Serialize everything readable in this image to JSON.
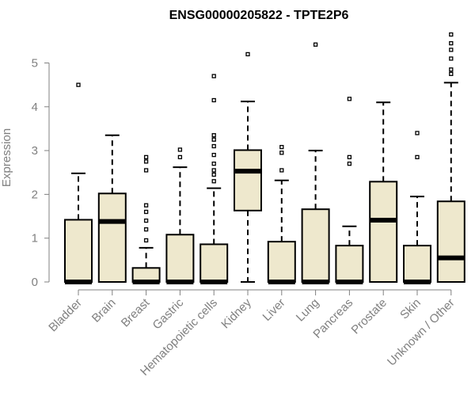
{
  "chart_data": {
    "type": "boxplot",
    "title": "ENSG00000205822 - TPTE2P6",
    "xlabel": "",
    "ylabel": "Expression",
    "ylim": [
      0,
      5.8
    ],
    "yticks": [
      0,
      1,
      2,
      3,
      4,
      5
    ],
    "grid": false,
    "box_fill": "#EEE8CD",
    "categories": [
      "Bladder",
      "Brain",
      "Breast",
      "Gastric",
      "Hematopoietic cells",
      "Kidney",
      "Liver",
      "Lung",
      "Pancreas",
      "Prostate",
      "Skin",
      "Unknown / Other"
    ],
    "boxes": [
      {
        "q1": 0,
        "median": 0,
        "q3": 1.42,
        "whisker_low": 0,
        "whisker_high": 2.48,
        "outliers": [
          4.5
        ]
      },
      {
        "q1": 0,
        "median": 1.38,
        "q3": 2.02,
        "whisker_low": 0,
        "whisker_high": 3.35,
        "outliers": []
      },
      {
        "q1": 0,
        "median": 0,
        "q3": 0.32,
        "whisker_low": 0,
        "whisker_high": 0.78,
        "outliers": [
          0.95,
          1.2,
          1.4,
          1.6,
          1.75,
          2.55,
          2.75,
          2.85
        ]
      },
      {
        "q1": 0,
        "median": 0,
        "q3": 1.08,
        "whisker_low": 0,
        "whisker_high": 2.62,
        "outliers": [
          2.85,
          3.02
        ]
      },
      {
        "q1": 0,
        "median": 0,
        "q3": 0.86,
        "whisker_low": 0,
        "whisker_high": 2.14,
        "outliers": [
          2.3,
          2.45,
          2.55,
          2.7,
          2.9,
          3.1,
          3.25,
          3.35,
          4.15,
          4.7
        ]
      },
      {
        "q1": 1.63,
        "median": 2.53,
        "q3": 3.01,
        "whisker_low": 0,
        "whisker_high": 4.12,
        "outliers": [
          5.2
        ]
      },
      {
        "q1": 0,
        "median": 0,
        "q3": 0.92,
        "whisker_low": 0,
        "whisker_high": 2.32,
        "outliers": [
          2.55,
          2.95,
          3.08
        ]
      },
      {
        "q1": 0,
        "median": 0,
        "q3": 1.66,
        "whisker_low": 0,
        "whisker_high": 3.0,
        "outliers": [
          5.42
        ]
      },
      {
        "q1": 0,
        "median": 0,
        "q3": 0.83,
        "whisker_low": 0,
        "whisker_high": 1.27,
        "outliers": [
          2.7,
          2.85,
          4.18
        ]
      },
      {
        "q1": 0,
        "median": 1.41,
        "q3": 2.29,
        "whisker_low": 0,
        "whisker_high": 4.1,
        "outliers": []
      },
      {
        "q1": 0,
        "median": 0,
        "q3": 0.83,
        "whisker_low": 0,
        "whisker_high": 1.95,
        "outliers": [
          2.85,
          3.4
        ]
      },
      {
        "q1": 0,
        "median": 0.55,
        "q3": 1.84,
        "whisker_low": 0,
        "whisker_high": 4.55,
        "outliers": [
          4.75,
          4.85,
          5.1,
          5.3,
          5.45,
          5.65
        ]
      }
    ]
  }
}
